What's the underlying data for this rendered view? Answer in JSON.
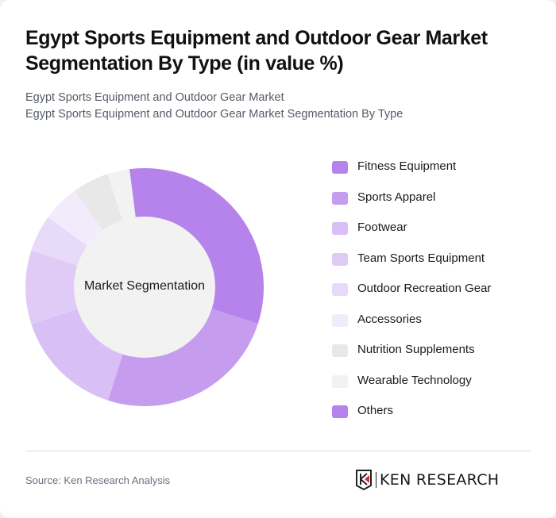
{
  "header": {
    "title": "Egypt Sports Equipment and Outdoor Gear Market Segmentation By Type (in value %)",
    "subtitle_line1": "Egypt Sports Equipment and Outdoor Gear Market",
    "subtitle_line2": "Egypt Sports Equipment and Outdoor Gear Market Segmentation By Type"
  },
  "chart": {
    "center_label": "Market Segmentation"
  },
  "legend": [
    {
      "label": "Fitness Equipment",
      "color": "#B583EB"
    },
    {
      "label": "Sports Apparel",
      "color": "#C59CEE"
    },
    {
      "label": "Footwear",
      "color": "#D8BFF5"
    },
    {
      "label": "Team Sports Equipment",
      "color": "#DFCBF6"
    },
    {
      "label": "Outdoor Recreation Gear",
      "color": "#E8DAF9"
    },
    {
      "label": "Accessories",
      "color": "#F2EBFC"
    },
    {
      "label": "Nutrition Supplements",
      "color": "#E8E8E8"
    },
    {
      "label": "Wearable Technology",
      "color": "#F2F2F2"
    },
    {
      "label": "Others",
      "color": "#B583EB"
    }
  ],
  "footer": {
    "source": "Source: Ken Research Analysis",
    "logo_text": "KEN RESEARCH"
  },
  "chart_data": {
    "type": "pie",
    "title": "Egypt Sports Equipment and Outdoor Gear Market Segmentation By Type (in value %)",
    "subtitle": "Egypt Sports Equipment and Outdoor Gear Market Segmentation By Type",
    "center_label": "Market Segmentation",
    "donut": true,
    "categories": [
      "Fitness Equipment",
      "Sports Apparel",
      "Footwear",
      "Team Sports Equipment",
      "Outdoor Recreation Gear",
      "Accessories",
      "Nutrition Supplements",
      "Wearable Technology",
      "Others"
    ],
    "values": [
      32,
      25,
      15,
      10,
      5,
      5,
      5,
      3,
      0
    ],
    "colors": [
      "#B583EB",
      "#C59CEE",
      "#D8BFF5",
      "#DFCBF6",
      "#E8DAF9",
      "#F2EBFC",
      "#E8E8E8",
      "#F2F2F2",
      "#B583EB"
    ],
    "start_angle_deg": -7.3,
    "legend_position": "right",
    "source": "Source: Ken Research Analysis"
  }
}
